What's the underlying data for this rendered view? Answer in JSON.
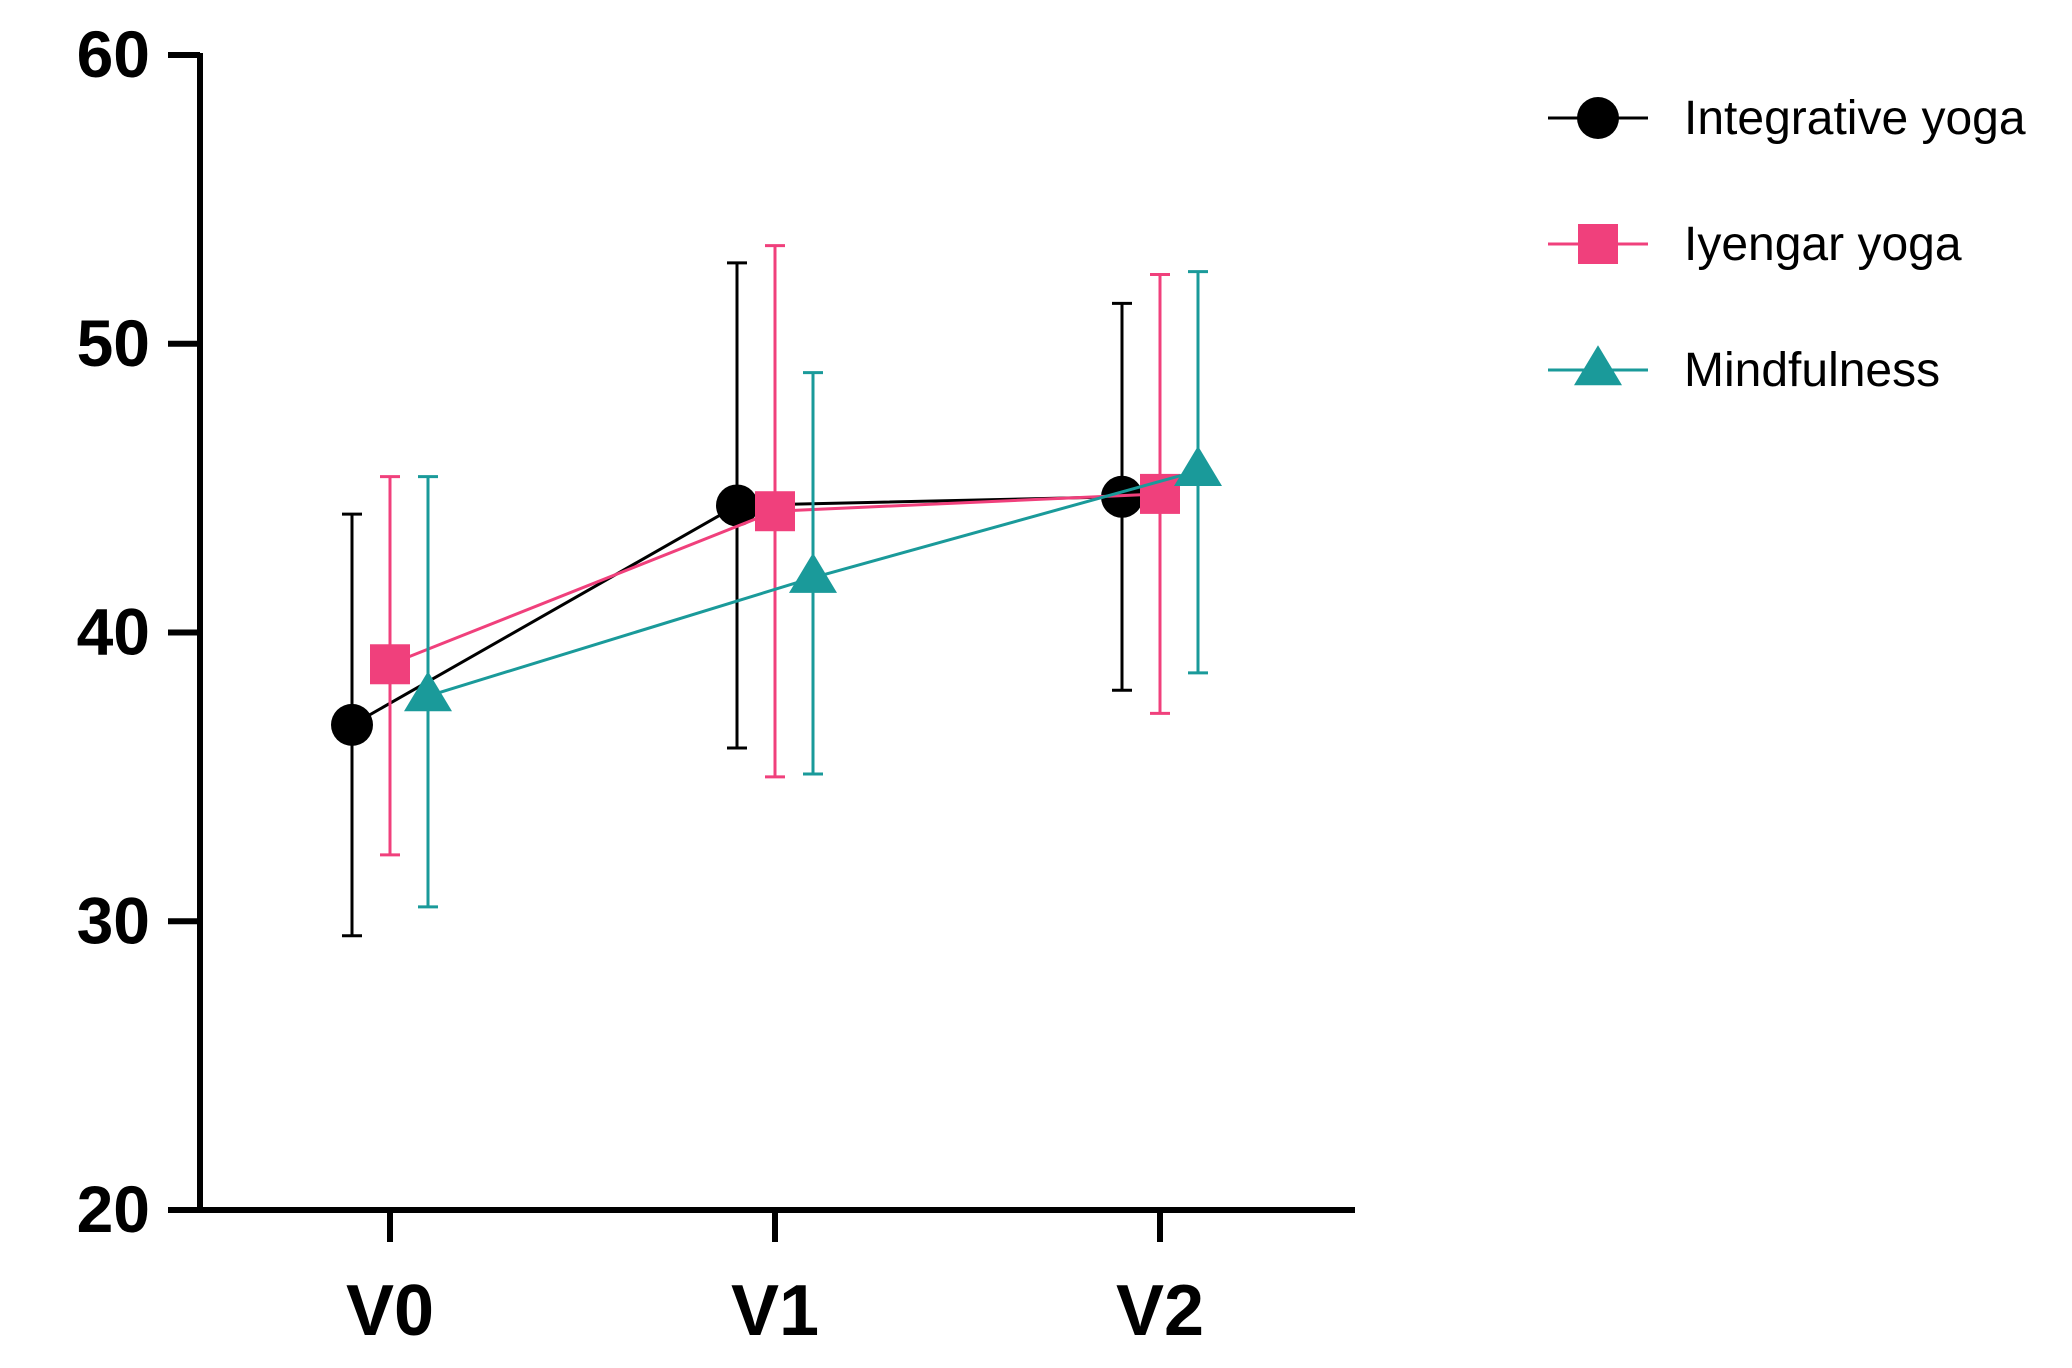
{
  "chart_data": {
    "type": "line",
    "title": "",
    "xlabel": "",
    "ylabel": "",
    "categories": [
      "V0",
      "V1",
      "V2"
    ],
    "yticks": [
      "20",
      "30",
      "40",
      "50",
      "60"
    ],
    "ylim": [
      20,
      60
    ],
    "grid": false,
    "legend_position": "top-right",
    "series": [
      {
        "name": "Integrative yoga",
        "color": "#000000",
        "marker": "circle",
        "values": [
          36.8,
          44.4,
          44.7
        ],
        "lower": [
          29.5,
          36.0,
          38.0
        ],
        "upper": [
          44.1,
          52.8,
          51.4
        ]
      },
      {
        "name": "Iyengar yoga",
        "color": "#f0407c",
        "marker": "square",
        "values": [
          38.9,
          44.2,
          44.8
        ],
        "lower": [
          32.3,
          35.0,
          37.2
        ],
        "upper": [
          45.4,
          53.4,
          52.4
        ]
      },
      {
        "name": "Mindfulness",
        "color": "#1a9a9a",
        "marker": "triangle",
        "values": [
          37.8,
          41.9,
          45.6
        ],
        "lower": [
          30.5,
          35.1,
          38.6
        ],
        "upper": [
          45.4,
          49.0,
          52.5
        ]
      }
    ]
  }
}
